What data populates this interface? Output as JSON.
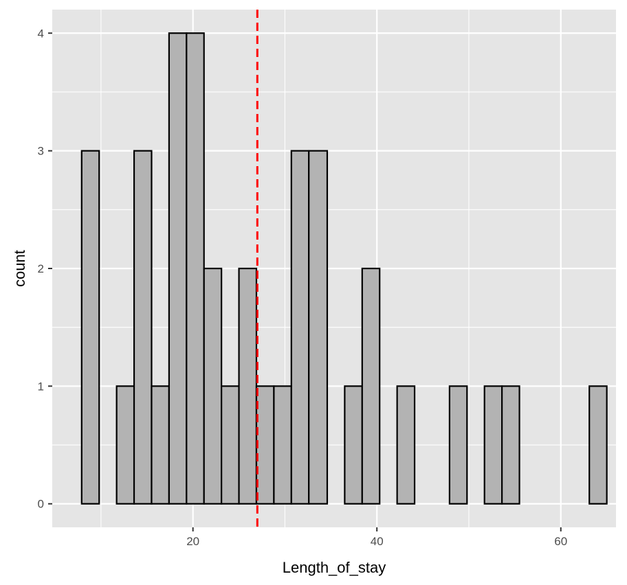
{
  "chart_data": {
    "type": "bar",
    "subtype": "histogram",
    "xlabel": "Length_of_stay",
    "ylabel": "count",
    "xlim": [
      4.7,
      66.0
    ],
    "ylim": [
      -0.2,
      4.2
    ],
    "x_ticks": [
      20,
      40,
      60
    ],
    "y_ticks": [
      0,
      1,
      2,
      3,
      4
    ],
    "bins": [
      {
        "x0": 7.9,
        "x1": 9.8,
        "count": 3
      },
      {
        "x0": 9.8,
        "x1": 11.7,
        "count": 0
      },
      {
        "x0": 11.7,
        "x1": 13.6,
        "count": 1
      },
      {
        "x0": 13.6,
        "x1": 15.5,
        "count": 3
      },
      {
        "x0": 15.5,
        "x1": 17.4,
        "count": 1
      },
      {
        "x0": 17.4,
        "x1": 19.3,
        "count": 4
      },
      {
        "x0": 19.3,
        "x1": 21.2,
        "count": 4
      },
      {
        "x0": 21.2,
        "x1": 23.1,
        "count": 2
      },
      {
        "x0": 23.1,
        "x1": 25.0,
        "count": 1
      },
      {
        "x0": 25.0,
        "x1": 26.9,
        "count": 2
      },
      {
        "x0": 26.9,
        "x1": 28.8,
        "count": 1
      },
      {
        "x0": 28.8,
        "x1": 30.7,
        "count": 1
      },
      {
        "x0": 30.7,
        "x1": 32.6,
        "count": 3
      },
      {
        "x0": 32.6,
        "x1": 34.6,
        "count": 3
      },
      {
        "x0": 34.6,
        "x1": 36.5,
        "count": 0
      },
      {
        "x0": 36.5,
        "x1": 38.4,
        "count": 1
      },
      {
        "x0": 38.4,
        "x1": 40.3,
        "count": 2
      },
      {
        "x0": 40.3,
        "x1": 42.2,
        "count": 0
      },
      {
        "x0": 42.2,
        "x1": 44.1,
        "count": 1
      },
      {
        "x0": 44.1,
        "x1": 46.0,
        "count": 0
      },
      {
        "x0": 46.0,
        "x1": 47.9,
        "count": 0
      },
      {
        "x0": 47.9,
        "x1": 49.8,
        "count": 1
      },
      {
        "x0": 49.8,
        "x1": 51.7,
        "count": 0
      },
      {
        "x0": 51.7,
        "x1": 53.6,
        "count": 1
      },
      {
        "x0": 53.6,
        "x1": 55.5,
        "count": 1
      },
      {
        "x0": 55.5,
        "x1": 57.4,
        "count": 0
      },
      {
        "x0": 57.4,
        "x1": 59.3,
        "count": 0
      },
      {
        "x0": 59.3,
        "x1": 61.2,
        "count": 0
      },
      {
        "x0": 61.2,
        "x1": 63.1,
        "count": 0
      },
      {
        "x0": 63.1,
        "x1": 65.0,
        "count": 1
      }
    ],
    "vline": {
      "x": 27.0,
      "color": "#ff0000",
      "style": "dashed"
    },
    "bar_fill": "#b3b3b3",
    "bar_stroke": "#000000",
    "panel_background": "#e5e5e5",
    "grid": true,
    "grid_color": "#ffffff"
  }
}
